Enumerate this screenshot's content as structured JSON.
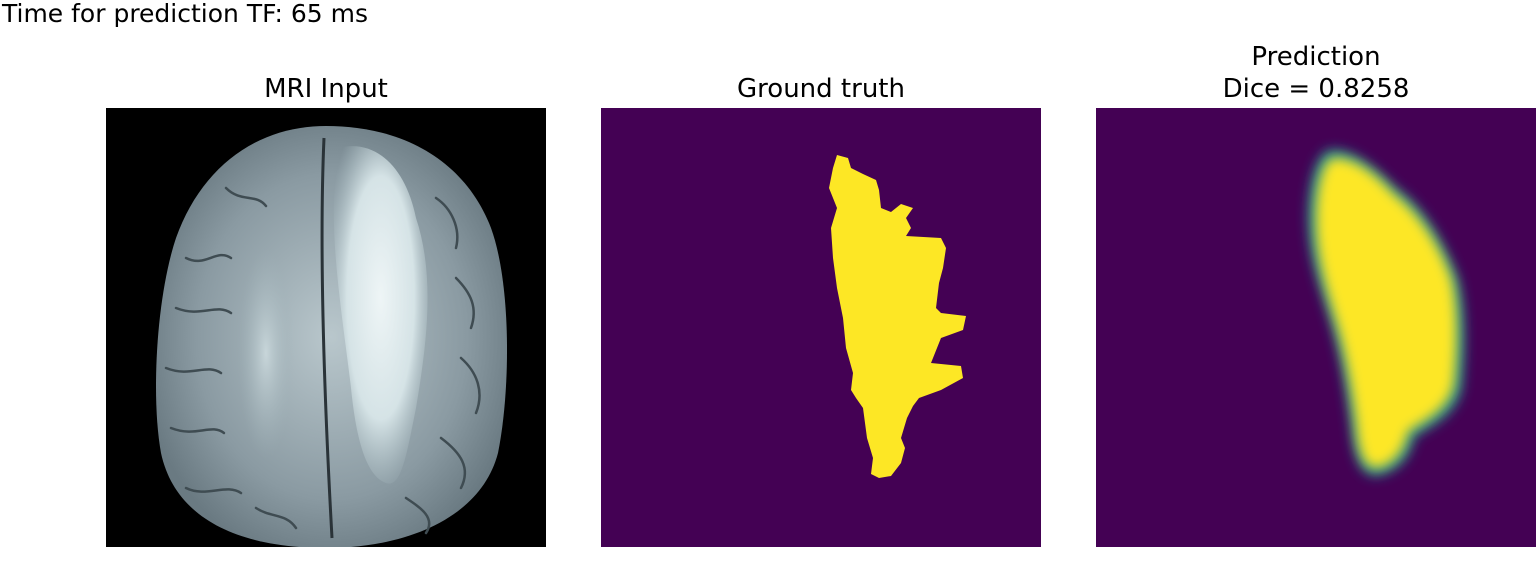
{
  "figure": {
    "suptitle": "Time for prediction TF: 65 ms",
    "panels": [
      {
        "title": "MRI Input",
        "image": "axial brain MRI slice (grayscale, bone colormap)"
      },
      {
        "title": "Ground truth",
        "image": "binary tumor mask (viridis colormap)"
      },
      {
        "title_line1": "Prediction",
        "title_line2": "Dice = 0.8258",
        "image": "predicted tumor probability map (viridis colormap)"
      }
    ],
    "colors": {
      "mask_background": "#440154",
      "mask_foreground": "#fde725",
      "mri_background": "#000000"
    }
  }
}
